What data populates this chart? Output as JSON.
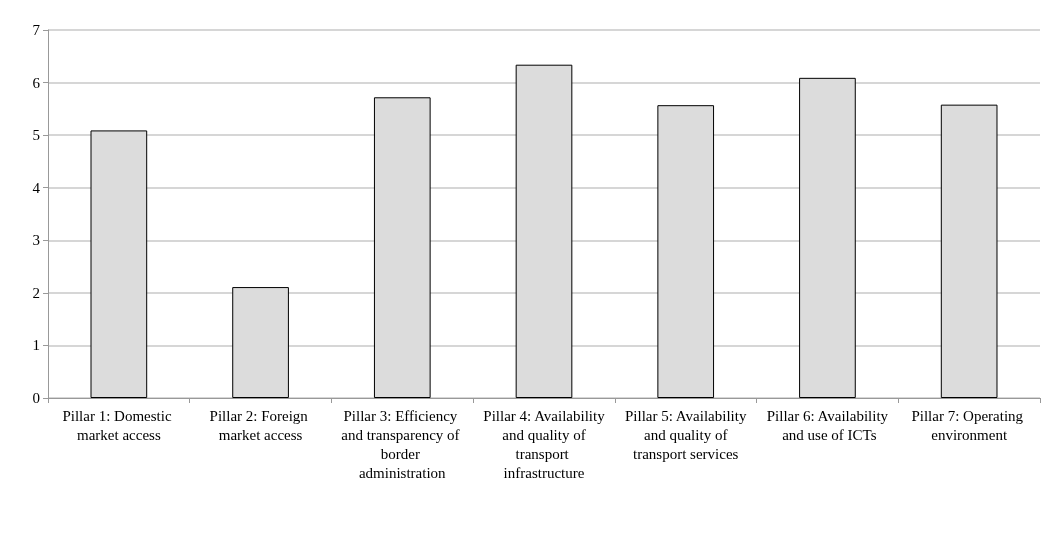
{
  "chart_data": {
    "type": "bar",
    "categories": [
      "Pillar 1: Domestic market access",
      "Pillar 2: Foreign market access",
      "Pillar 3: Efficiency and transparency of border administration",
      "Pillar 4: Availability and quality of transport infrastructure",
      "Pillar 5: Availability and quality of transport services",
      "Pillar 6: Availability and use of ICTs",
      "Pillar 7: Operating environment"
    ],
    "values": [
      5.09,
      2.11,
      5.72,
      6.34,
      5.57,
      6.09,
      5.58
    ],
    "color": "#dcdcdc",
    "ylim": [
      0,
      7
    ],
    "yticks": [
      0,
      1,
      2,
      3,
      4,
      5,
      6,
      7
    ],
    "grid": "y"
  }
}
